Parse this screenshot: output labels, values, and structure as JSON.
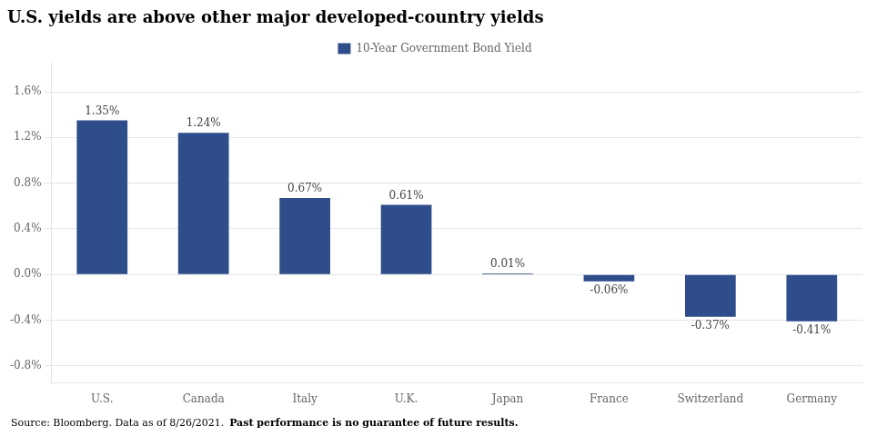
{
  "chart_data": {
    "type": "bar",
    "title": "U.S. yields are above other major developed-country yields",
    "categories": [
      "U.S.",
      "Canada",
      "Italy",
      "U.K.",
      "Japan",
      "France",
      "Switzerland",
      "Germany"
    ],
    "series": [
      {
        "name": "10-Year Government Bond Yield",
        "color": "#2E4D8A",
        "values": [
          1.35,
          1.24,
          0.67,
          0.61,
          0.01,
          -0.06,
          -0.37,
          -0.41
        ],
        "value_labels": [
          "1.35%",
          "1.24%",
          "0.67%",
          "0.61%",
          "0.01%",
          "-0.06%",
          "-0.37%",
          "-0.41%"
        ]
      }
    ],
    "ylim": [
      -0.95,
      1.85
    ],
    "yticks": [
      {
        "value": -0.8,
        "label": "-0.8%"
      },
      {
        "value": -0.4,
        "label": "-0.4%"
      },
      {
        "value": 0.0,
        "label": "0.0%"
      },
      {
        "value": 0.4,
        "label": "0.4%"
      },
      {
        "value": 0.8,
        "label": "0.8%"
      },
      {
        "value": 1.2,
        "label": "1.2%"
      },
      {
        "value": 1.6,
        "label": "1.6%"
      }
    ],
    "grid": true,
    "legend": "top",
    "data_labels": true,
    "annotations": [
      "Source: Bloomberg. Data as of 8/26/2021.",
      "Past performance is no guarantee of future results."
    ]
  }
}
